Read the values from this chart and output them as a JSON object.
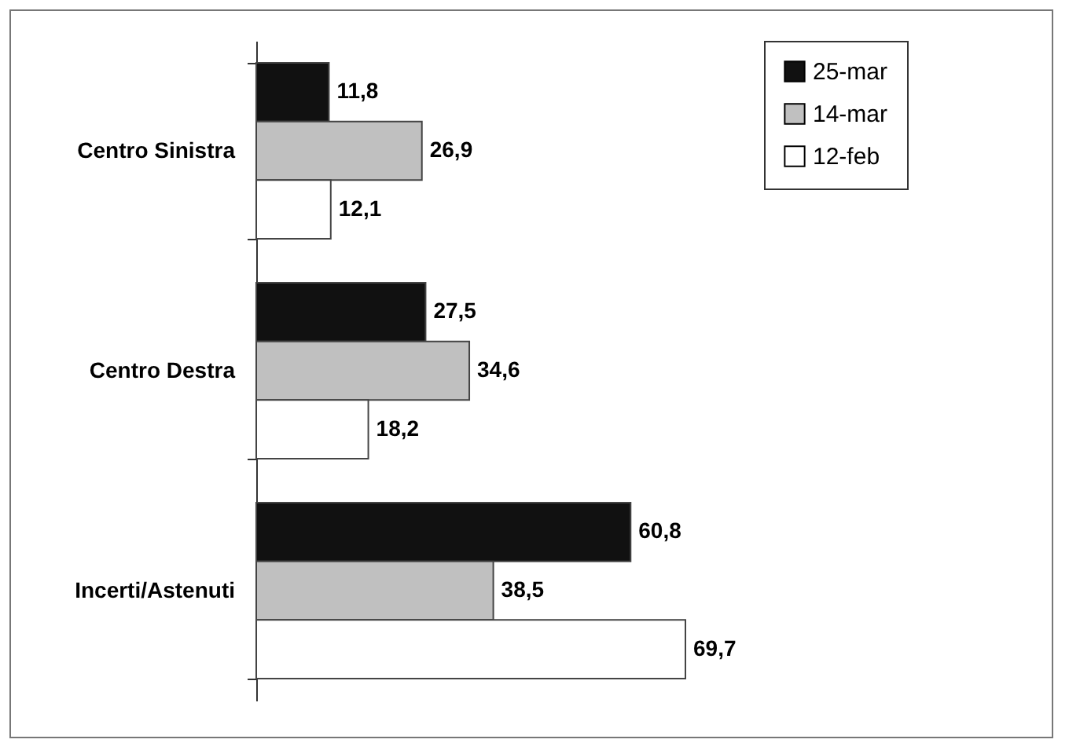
{
  "chart_data": {
    "type": "bar",
    "orientation": "horizontal",
    "categories": [
      "Centro Sinistra",
      "Centro Destra",
      "Incerti/Astenuti"
    ],
    "series": [
      {
        "name": "25-mar",
        "color": "#111111",
        "values": [
          11.8,
          27.5,
          60.8
        ],
        "value_labels": [
          "11,8",
          "27,5",
          "60,8"
        ]
      },
      {
        "name": "14-mar",
        "color": "#c0c0c0",
        "values": [
          26.9,
          34.6,
          38.5
        ],
        "value_labels": [
          "26,9",
          "34,6",
          "38,5"
        ]
      },
      {
        "name": "12-feb",
        "color": "#ffffff",
        "values": [
          12.1,
          18.2,
          69.7
        ],
        "value_labels": [
          "12,1",
          "18,2",
          "69,7"
        ]
      }
    ],
    "legend": "right"
  }
}
